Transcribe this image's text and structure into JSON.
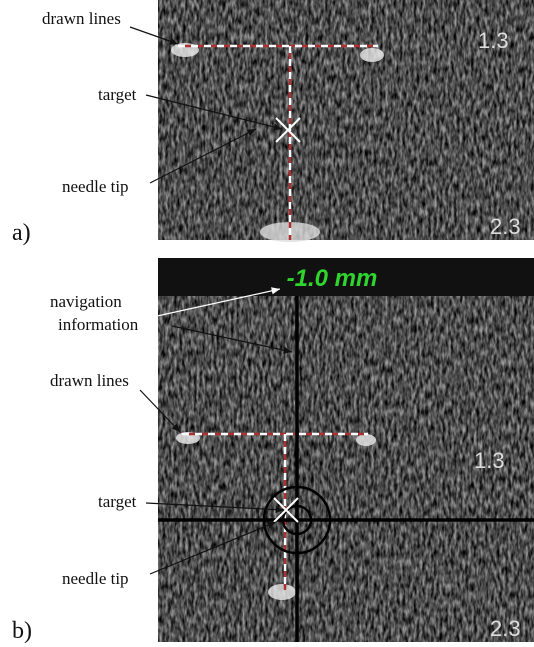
{
  "panel_a": {
    "label": "a)",
    "annotations": {
      "drawn_lines": "drawn lines",
      "target": "target",
      "needle_tip": "needle tip"
    },
    "scale_labels": [
      "1.3",
      "2.3"
    ]
  },
  "panel_b": {
    "label": "b)",
    "navigation_value": "-1.0 mm",
    "annotations": {
      "navigation_information": [
        "navigation",
        "information"
      ],
      "drawn_lines": "drawn lines",
      "target": "target",
      "needle_tip": "needle tip"
    },
    "scale_labels": [
      "1.3",
      "2.3"
    ]
  }
}
